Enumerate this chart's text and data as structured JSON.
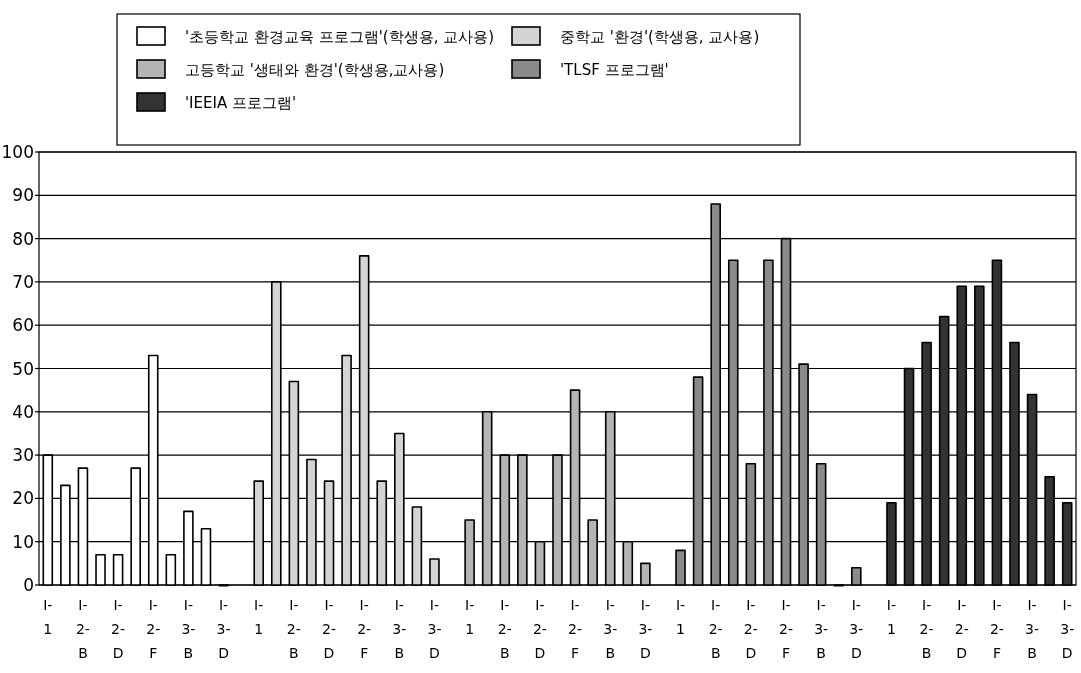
{
  "chart_data": {
    "type": "bar",
    "categories": [
      "I- 1",
      null,
      "I- 2- B",
      null,
      "I- 2- D",
      null,
      "I- 2- F",
      null,
      "I- 3- B",
      null,
      "I- 3- D",
      null,
      "I- 1",
      null,
      "I- 2- B",
      null,
      "I- 2- D",
      null,
      "I- 2- F",
      null,
      "I- 3- B",
      null,
      "I- 3- D",
      null,
      "I- 1",
      null,
      "I- 2- B",
      null,
      "I- 2- D",
      null,
      "I- 2- F",
      null,
      "I- 3- B",
      null,
      "I- 3- D",
      null,
      "I- 1",
      null,
      "I- 2- B",
      null,
      "I- 2- D",
      null,
      "I- 2- F",
      null,
      "I- 3- B",
      null,
      "I- 3- D",
      null,
      "I- 1",
      null,
      "I- 2- B",
      null,
      "I- 2- D",
      null,
      "I- 2- F",
      null,
      "I- 3- B",
      null,
      "I- 3- D"
    ],
    "series": [
      {
        "name": "'초등학교 환경교육 프로그램'(학생용, 교사용)",
        "color": "#ffffff",
        "values": [
          30,
          23,
          27,
          7,
          7,
          27,
          53,
          7,
          17,
          13,
          0,
          null,
          null,
          null,
          null,
          null,
          null,
          null,
          null,
          null,
          null,
          null,
          null,
          null,
          null,
          null,
          null,
          null,
          null,
          null,
          null,
          null,
          null,
          null,
          null,
          null,
          null,
          null,
          null,
          null,
          null,
          null,
          null,
          null,
          null,
          null,
          null,
          null,
          null,
          null,
          null,
          null,
          null,
          null,
          null,
          null,
          null,
          null,
          null
        ]
      },
      {
        "name": "중학교 '환경'(학생용, 교사용)",
        "color": "#d4d4d4",
        "values": [
          null,
          null,
          null,
          null,
          null,
          null,
          null,
          null,
          null,
          null,
          null,
          null,
          24,
          70,
          47,
          29,
          24,
          53,
          76,
          24,
          35,
          18,
          6,
          null,
          null,
          null,
          null,
          null,
          null,
          null,
          null,
          null,
          null,
          null,
          null,
          null,
          null,
          null,
          null,
          null,
          null,
          null,
          null,
          null,
          null,
          null,
          null,
          null,
          null,
          null,
          null,
          null,
          null,
          null,
          null,
          null,
          null,
          null,
          null
        ]
      },
      {
        "name": "고등학교 '생태와 환경'(학생용,교사용)",
        "color": "#b4b4b4",
        "values": [
          null,
          null,
          null,
          null,
          null,
          null,
          null,
          null,
          null,
          null,
          null,
          null,
          null,
          null,
          null,
          null,
          null,
          null,
          null,
          null,
          null,
          null,
          null,
          null,
          15,
          40,
          30,
          30,
          10,
          30,
          45,
          15,
          40,
          10,
          5,
          null,
          null,
          null,
          null,
          null,
          null,
          null,
          null,
          null,
          null,
          null,
          null,
          null,
          null,
          null,
          null,
          null,
          null,
          null,
          null,
          null,
          null,
          null,
          null
        ]
      },
      {
        "name": "'TLSF 프로그램'",
        "color": "#8a8a8a",
        "values": [
          null,
          null,
          null,
          null,
          null,
          null,
          null,
          null,
          null,
          null,
          null,
          null,
          null,
          null,
          null,
          null,
          null,
          null,
          null,
          null,
          null,
          null,
          null,
          null,
          null,
          null,
          null,
          null,
          null,
          null,
          null,
          null,
          null,
          null,
          null,
          null,
          8,
          48,
          88,
          75,
          28,
          75,
          80,
          51,
          28,
          0,
          4,
          null,
          null,
          null,
          null,
          null,
          null,
          null,
          null,
          null,
          null,
          null,
          null
        ]
      },
      {
        "name": "'IEEIA 프로그램'",
        "color": "#333333",
        "values": [
          null,
          null,
          null,
          null,
          null,
          null,
          null,
          null,
          null,
          null,
          null,
          null,
          null,
          null,
          null,
          null,
          null,
          null,
          null,
          null,
          null,
          null,
          null,
          null,
          null,
          null,
          null,
          null,
          null,
          null,
          null,
          null,
          null,
          null,
          null,
          null,
          null,
          null,
          null,
          null,
          null,
          null,
          null,
          null,
          null,
          null,
          null,
          null,
          19,
          50,
          56,
          62,
          69,
          69,
          75,
          56,
          44,
          25,
          19
        ]
      }
    ],
    "ylim": [
      0,
      100
    ],
    "yticks": [
      0,
      10,
      20,
      30,
      40,
      50,
      60,
      70,
      80,
      90,
      100
    ],
    "grid": "y",
    "legend": "top"
  }
}
